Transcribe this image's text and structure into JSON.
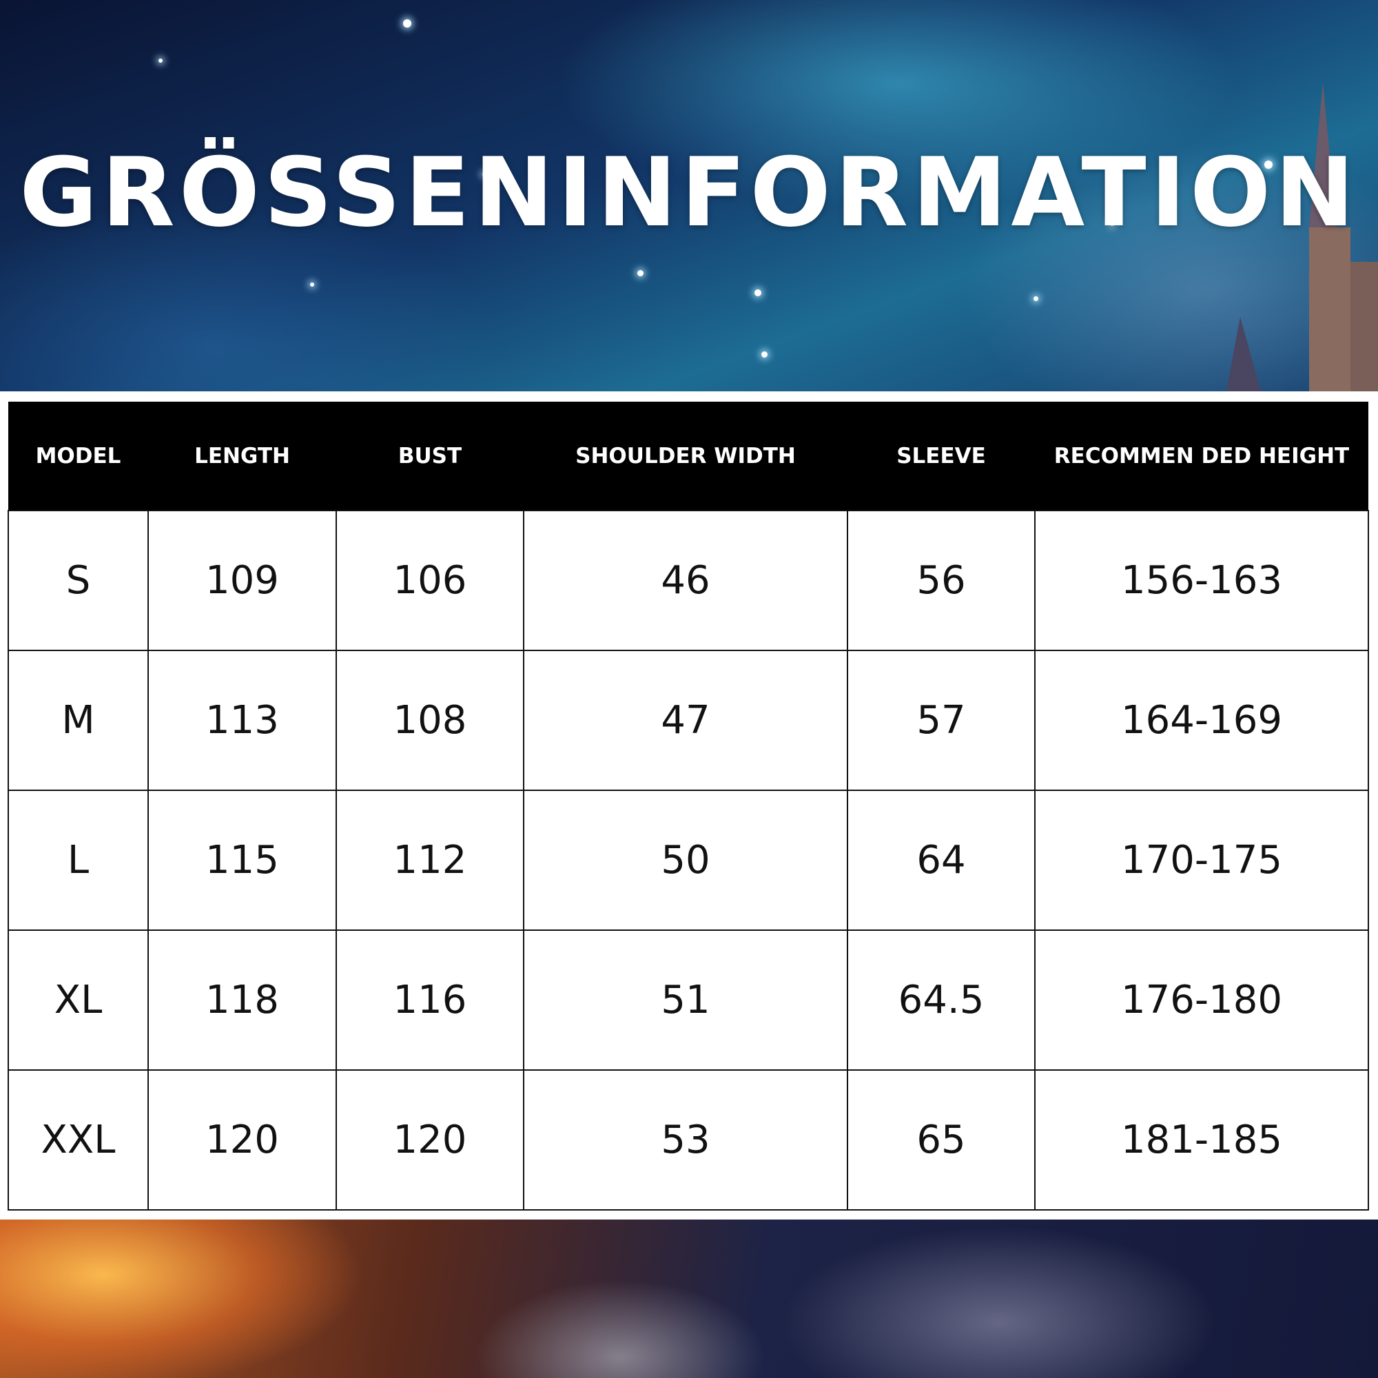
{
  "title": "GRÖSSENINFORMATION",
  "table": {
    "headers": [
      "MODEL",
      "LENGTH",
      "BUST",
      "SHOULDER WIDTH",
      "SLEEVE",
      "RECOMMEN DED HEIGHT"
    ],
    "rows": [
      [
        "S",
        "109",
        "106",
        "46",
        "56",
        "156-163"
      ],
      [
        "M",
        "113",
        "108",
        "47",
        "57",
        "164-169"
      ],
      [
        "L",
        "115",
        "112",
        "50",
        "64",
        "170-175"
      ],
      [
        "XL",
        "118",
        "116",
        "51",
        "64.5",
        "176-180"
      ],
      [
        "XXL",
        "120",
        "120",
        "53",
        "65",
        "181-185"
      ]
    ]
  }
}
